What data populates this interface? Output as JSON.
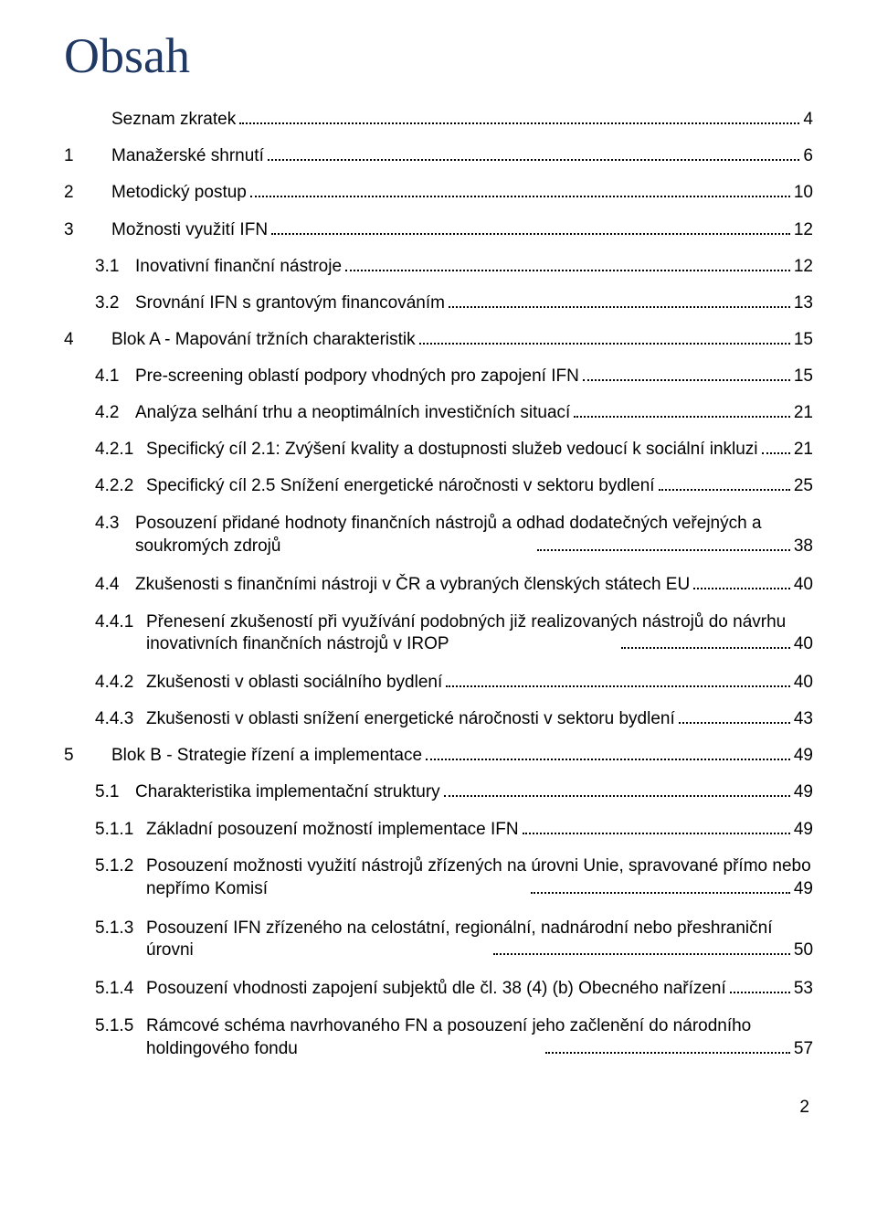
{
  "title": "Obsah",
  "footer_page": "2",
  "entries": [
    {
      "indent": 0,
      "num": "",
      "label": "Seznam zkratek",
      "page": "4"
    },
    {
      "indent": 0,
      "num": "1",
      "label": "Manažerské shrnutí",
      "page": "6"
    },
    {
      "indent": 0,
      "num": "2",
      "label": "Metodický postup",
      "page": "10"
    },
    {
      "indent": 0,
      "num": "3",
      "label": "Možnosti využití IFN",
      "page": "12"
    },
    {
      "indent": 1,
      "num": "3.1",
      "label": "Inovativní finanční nástroje",
      "page": "12"
    },
    {
      "indent": 1,
      "num": "3.2",
      "label": "Srovnání IFN s grantovým financováním",
      "page": "13"
    },
    {
      "indent": 0,
      "num": "4",
      "label": "Blok A - Mapování tržních charakteristik",
      "page": "15"
    },
    {
      "indent": 1,
      "num": "4.1",
      "label": "Pre-screening oblastí podpory vhodných pro zapojení IFN",
      "page": "15"
    },
    {
      "indent": 1,
      "num": "4.2",
      "label": "Analýza selhání trhu a neoptimálních investičních situací",
      "page": "21"
    },
    {
      "indent": 2,
      "num": "4.2.1",
      "label": "Specifický cíl 2.1: Zvýšení kvality a dostupnosti služeb vedoucí k sociální inkluzi",
      "page": "21"
    },
    {
      "indent": 2,
      "num": "4.2.2",
      "label": "Specifický cíl 2.5 Snížení energetické náročnosti v sektoru bydlení",
      "page": "25"
    },
    {
      "indent": 1,
      "num": "4.3",
      "label_lines": [
        "Posouzení  přidané  hodnoty  finančních  nástrojů  a  odhad  dodatečných  veřejných  a",
        "soukromých zdrojů"
      ],
      "page": "38"
    },
    {
      "indent": 1,
      "num": "4.4",
      "label": "Zkušenosti s finančními nástroji v ČR a vybraných členských státech EU",
      "page": "40"
    },
    {
      "indent": 2,
      "num": "4.4.1",
      "label_lines": [
        "Přenesení zkušeností při využívání podobných již realizovaných nástrojů do návrhu",
        "inovativních finančních nástrojů v IROP"
      ],
      "page": "40"
    },
    {
      "indent": 2,
      "num": "4.4.2",
      "label": "Zkušenosti v oblasti sociálního bydlení",
      "page": "40"
    },
    {
      "indent": 2,
      "num": "4.4.3",
      "label": "Zkušenosti v oblasti snížení energetické náročnosti v sektoru bydlení",
      "page": "43"
    },
    {
      "indent": 0,
      "num": "5",
      "label": "Blok B - Strategie řízení a implementace",
      "page": "49"
    },
    {
      "indent": 1,
      "num": "5.1",
      "label": "Charakteristika implementační struktury",
      "page": "49"
    },
    {
      "indent": 2,
      "num": "5.1.1",
      "label": "Základní posouzení možností implementace IFN",
      "page": "49"
    },
    {
      "indent": 2,
      "num": "5.1.2",
      "label_lines": [
        "Posouzení možnosti využití nástrojů zřízených na úrovni Unie, spravované přímo nebo",
        "nepřímo Komisí"
      ],
      "page": "49"
    },
    {
      "indent": 2,
      "num": "5.1.3",
      "label_lines": [
        "Posouzení  IFN  zřízeného  na  celostátní,  regionální,  nadnárodní  nebo  přeshraniční",
        "úrovni"
      ],
      "page": "50"
    },
    {
      "indent": 2,
      "num": "5.1.4",
      "label": "Posouzení vhodnosti zapojení subjektů dle čl. 38 (4) (b) Obecného nařízení",
      "page": "53"
    },
    {
      "indent": 2,
      "num": "5.1.5",
      "label_lines": [
        "Rámcové  schéma  navrhovaného  FN  a  posouzení  jeho  začlenění  do  národního",
        "holdingového fondu"
      ],
      "page": "57"
    }
  ],
  "num_widths": {
    "l0": "52px",
    "l1": "44px",
    "l2": "56px"
  }
}
